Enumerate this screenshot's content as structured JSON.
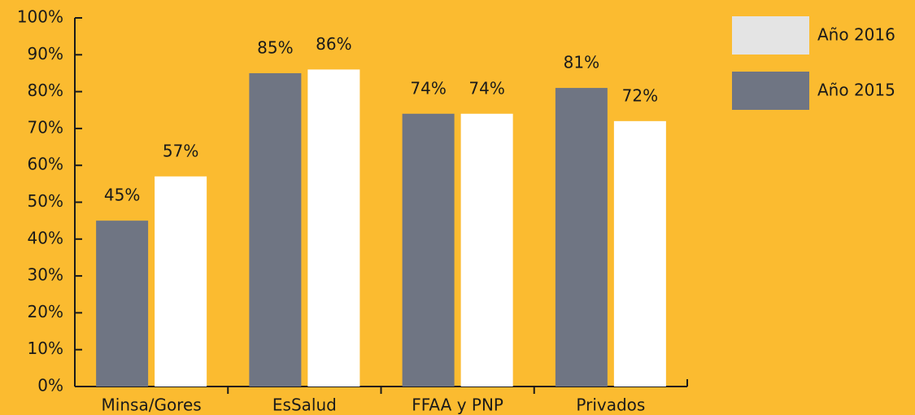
{
  "chart_data": {
    "type": "bar",
    "categories": [
      "Minsa/Gores",
      "EsSalud",
      "FFAA y PNP",
      "Privados"
    ],
    "series": [
      {
        "name": "Año 2015",
        "color": "#6f7583",
        "values": [
          45,
          85,
          74,
          81
        ],
        "value_labels": [
          "45%",
          "85%",
          "74%",
          "81%"
        ]
      },
      {
        "name": "Año 2016",
        "color": "#ffffff",
        "values": [
          57,
          86,
          74,
          72
        ],
        "value_labels": [
          "57%",
          "86%",
          "74%",
          "72%"
        ]
      }
    ],
    "ylim": [
      0,
      100
    ],
    "yticks": [
      {
        "value": 0,
        "label": "0%"
      },
      {
        "value": 10,
        "label": "10%"
      },
      {
        "value": 20,
        "label": "20%"
      },
      {
        "value": 30,
        "label": "30%"
      },
      {
        "value": 40,
        "label": "40%"
      },
      {
        "value": 50,
        "label": "50%"
      },
      {
        "value": 60,
        "label": "60%"
      },
      {
        "value": 70,
        "label": "70%"
      },
      {
        "value": 80,
        "label": "80%"
      },
      {
        "value": 90,
        "label": "90%"
      },
      {
        "value": 100,
        "label": "100%"
      }
    ],
    "legend": "right"
  }
}
